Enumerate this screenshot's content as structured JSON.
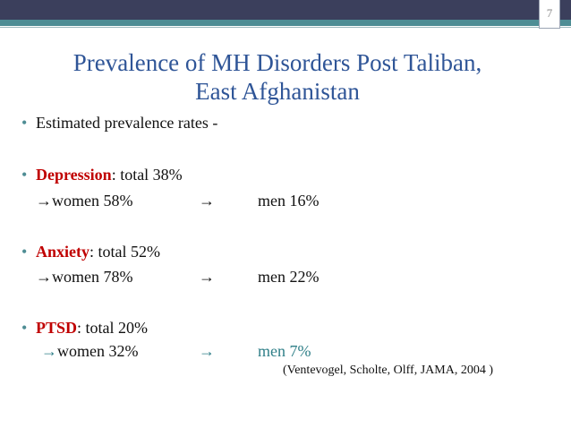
{
  "slide": {
    "number": "7",
    "title_line1": "Prevalence of MH Disorders Post Taliban,",
    "title_line2": "East Afghanistan",
    "intro": "Estimated prevalence rates -",
    "items": [
      {
        "term": "Depression",
        "total": ":  total 38%",
        "women": "women 58%",
        "men": "men 16%"
      },
      {
        "term": "Anxiety",
        "total": ":  total 52%",
        "women": "women 78%",
        "men": "men 22%"
      },
      {
        "term": "PTSD",
        "total": ":  total 20%",
        "women": "women 32%",
        "men": "men 7%"
      }
    ],
    "citation": "(Ventevogel,  Scholte,  Olff,  JAMA, 2004 )"
  }
}
